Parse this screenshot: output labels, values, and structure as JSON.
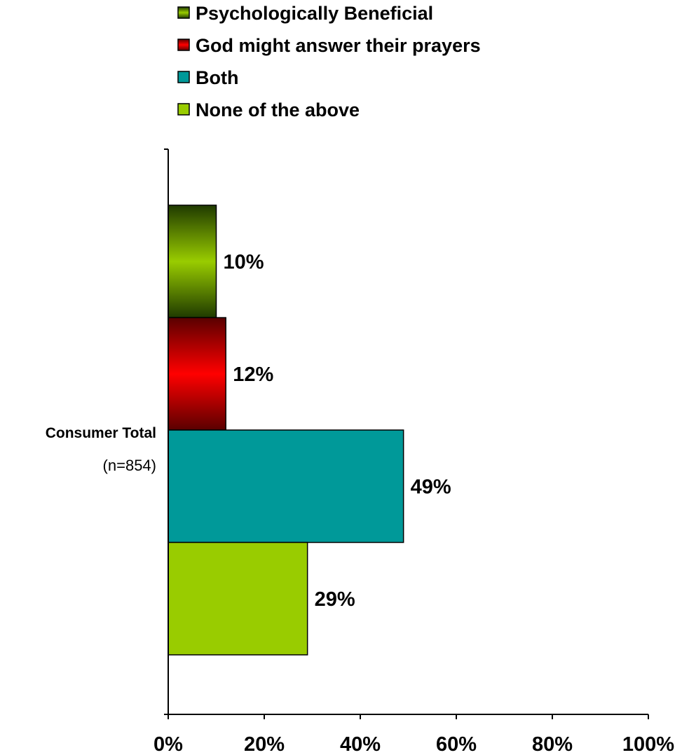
{
  "chart_data": {
    "type": "bar",
    "orientation": "horizontal",
    "categories": [
      "Consumer Total"
    ],
    "category_sublabels": [
      "(n=854)"
    ],
    "series": [
      {
        "name": "Psychologically Beneficial",
        "values": [
          10
        ],
        "label": "10%",
        "color": "#99cc00",
        "shade": "#1f3a00"
      },
      {
        "name": "God might answer their prayers",
        "values": [
          12
        ],
        "label": "12%",
        "color": "#ff0000",
        "shade": "#5a0000"
      },
      {
        "name": "Both",
        "values": [
          49
        ],
        "label": "49%",
        "color": "#009999"
      },
      {
        "name": "None of the above",
        "values": [
          29
        ],
        "label": "29%",
        "color": "#99cc00"
      }
    ],
    "xlim": [
      0,
      100
    ],
    "xticks": [
      "0%",
      "20%",
      "40%",
      "60%",
      "80%",
      "100%"
    ],
    "grid": false,
    "legend_position": "top"
  }
}
